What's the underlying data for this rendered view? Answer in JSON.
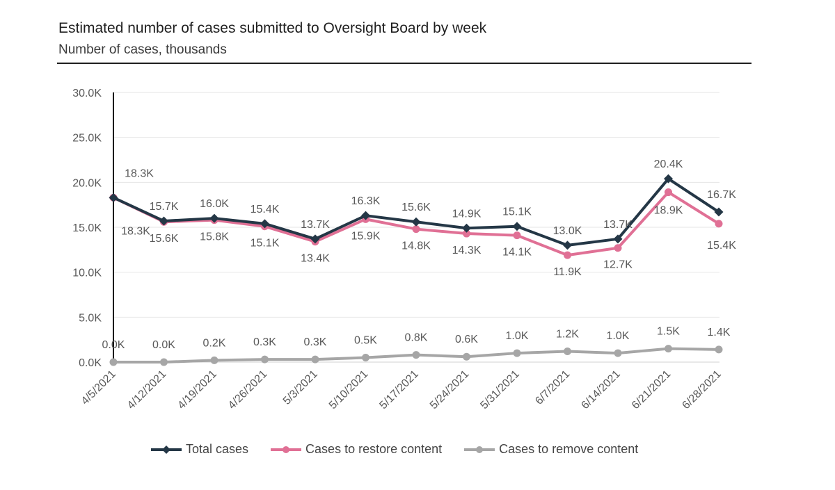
{
  "chart_data": {
    "type": "line",
    "title": "Estimated number of cases submitted to Oversight Board by week",
    "subtitle": "Number of cases, thousands",
    "categories": [
      "4/5/2021",
      "4/12/2021",
      "4/19/2021",
      "4/26/2021",
      "5/3/2021",
      "5/10/2021",
      "5/17/2021",
      "5/24/2021",
      "5/31/2021",
      "6/7/2021",
      "6/14/2021",
      "6/21/2021",
      "6/28/2021"
    ],
    "ylim": [
      0,
      30000
    ],
    "yticks": [
      0,
      5000,
      10000,
      15000,
      20000,
      25000,
      30000
    ],
    "ytick_labels": [
      "0.0K",
      "5.0K",
      "10.0K",
      "15.0K",
      "20.0K",
      "25.0K",
      "30.0K"
    ],
    "grid": true,
    "legend_position": "bottom",
    "series": [
      {
        "name": "Total cases",
        "color": "#243746",
        "marker": "diamond",
        "values": [
          18300,
          15700,
          16000,
          15400,
          13700,
          16300,
          15600,
          14900,
          15100,
          13000,
          13700,
          20400,
          16700
        ],
        "labels": [
          "18.3K",
          "15.7K",
          "16.0K",
          "15.4K",
          "13.7K",
          "16.3K",
          "15.6K",
          "14.9K",
          "15.1K",
          "13.0K",
          "13.7K",
          "20.4K",
          "16.7K"
        ]
      },
      {
        "name": "Cases to restore content",
        "color": "#e07095",
        "marker": "circle",
        "values": [
          18300,
          15600,
          15800,
          15100,
          13400,
          15900,
          14800,
          14300,
          14100,
          11900,
          12700,
          18900,
          15400
        ],
        "labels": [
          "18.3K",
          "15.6K",
          "15.8K",
          "15.1K",
          "13.4K",
          "15.9K",
          "14.8K",
          "14.3K",
          "14.1K",
          "11.9K",
          "12.7K",
          "18.9K",
          "15.4K"
        ]
      },
      {
        "name": "Cases to remove content",
        "color": "#a6a6a6",
        "marker": "circle",
        "values": [
          0,
          0,
          200,
          300,
          300,
          500,
          800,
          600,
          1000,
          1200,
          1000,
          1500,
          1400
        ],
        "labels": [
          "0.0K",
          "0.0K",
          "0.2K",
          "0.3K",
          "0.3K",
          "0.5K",
          "0.8K",
          "0.6K",
          "1.0K",
          "1.2K",
          "1.0K",
          "1.5K",
          "1.4K"
        ]
      }
    ]
  }
}
